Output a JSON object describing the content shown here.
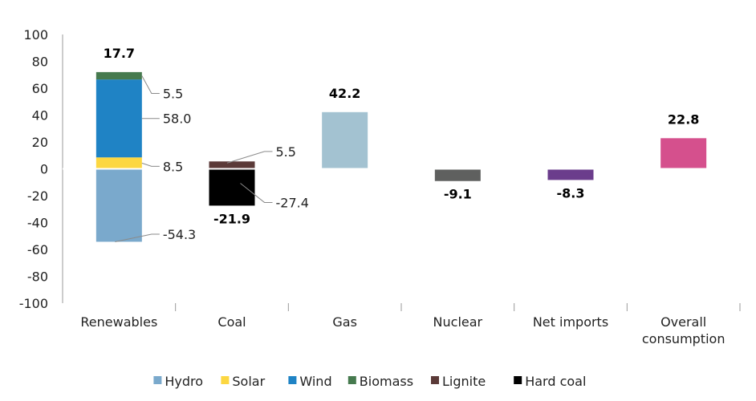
{
  "chart_data": {
    "type": "bar",
    "stacked": true,
    "ylim": [
      -100,
      100
    ],
    "yticks": [
      100,
      80,
      60,
      40,
      20,
      0,
      -20,
      -40,
      -60,
      -80,
      -100
    ],
    "categories": [
      {
        "label": [
          "Renewables"
        ],
        "total": "17.7"
      },
      {
        "label": [
          "Coal"
        ],
        "total": "-21.9"
      },
      {
        "label": [
          "Gas"
        ],
        "total": "42.2"
      },
      {
        "label": [
          "Nuclear"
        ],
        "total": "-9.1"
      },
      {
        "label": [
          "Net imports"
        ],
        "total": "-8.3"
      },
      {
        "label": [
          "Overall",
          "consumption"
        ],
        "total": "22.8"
      }
    ],
    "bars": [
      {
        "category": 0,
        "series": "Hydro",
        "value": -54.3,
        "label": "-54.3"
      },
      {
        "category": 0,
        "series": "Solar",
        "value": 8.5,
        "label": "8.5"
      },
      {
        "category": 0,
        "series": "Wind",
        "value": 58.0,
        "label": "58.0"
      },
      {
        "category": 0,
        "series": "Biomass",
        "value": 5.5,
        "label": "5.5"
      },
      {
        "category": 1,
        "series": "Hard coal",
        "value": -27.4,
        "label": "-27.4"
      },
      {
        "category": 1,
        "series": "Lignite",
        "value": 5.5,
        "label": "5.5"
      },
      {
        "category": 2,
        "series": null,
        "color": "#a3c2d1",
        "value": 42.2
      },
      {
        "category": 3,
        "series": null,
        "color": "#5f605f",
        "value": -9.1
      },
      {
        "category": 4,
        "series": null,
        "color": "#6b3d8c",
        "value": -8.3
      },
      {
        "category": 5,
        "series": null,
        "color": "#d5508d",
        "value": 22.8
      }
    ],
    "legend": [
      {
        "name": "Hydro",
        "color": "#7aa9cc"
      },
      {
        "name": "Solar",
        "color": "#fcd741"
      },
      {
        "name": "Wind",
        "color": "#1f83c5"
      },
      {
        "name": "Biomass",
        "color": "#467a4e"
      },
      {
        "name": "Lignite",
        "color": "#5b3a38"
      },
      {
        "name": "Hard coal",
        "color": "#000000"
      }
    ],
    "legend_position": "bottom",
    "grid": false
  }
}
